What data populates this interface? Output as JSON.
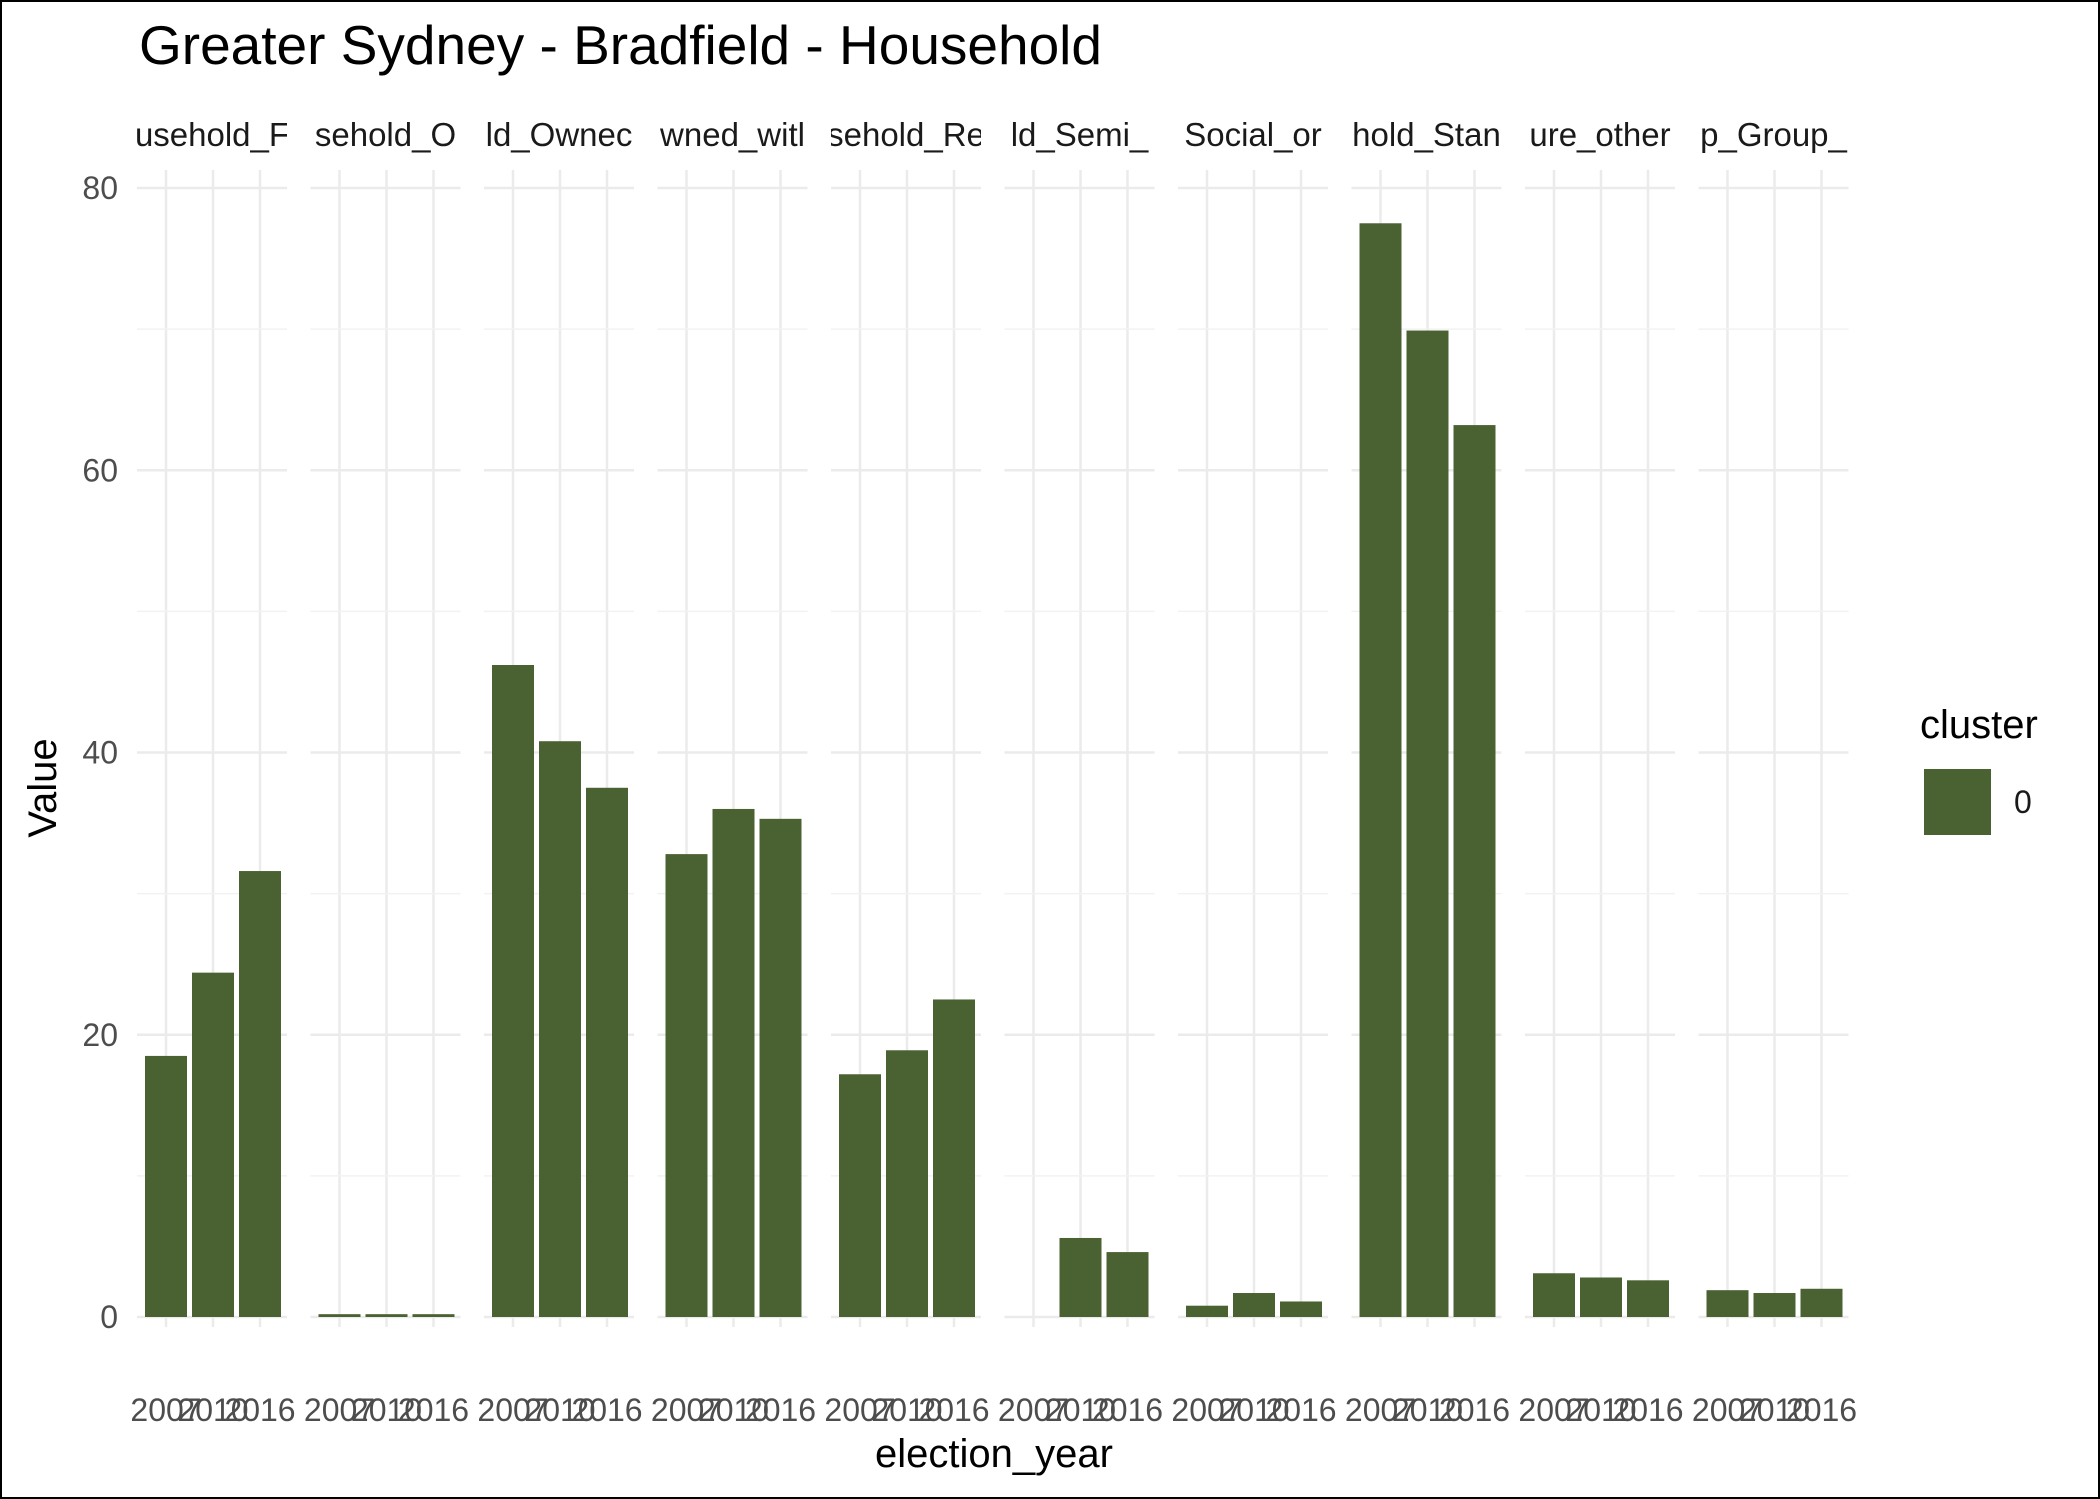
{
  "chart_data": {
    "type": "bar",
    "title": "Greater Sydney - Bradfield - Household",
    "xlabel": "election_year",
    "ylabel": "Value",
    "ylim": [
      0,
      80
    ],
    "y_ticks": [
      0,
      20,
      40,
      60,
      80
    ],
    "x_tick_labels": [
      "2007",
      "2010",
      "2016"
    ],
    "grid": true,
    "facets": [
      {
        "strip_label": "usehold_F",
        "values": [
          18.5,
          24.4,
          31.6
        ]
      },
      {
        "strip_label": "sehold_O",
        "values": [
          0.2,
          0.2,
          0.2
        ]
      },
      {
        "strip_label": "ld_Ownec",
        "values": [
          46.2,
          40.8,
          37.5
        ]
      },
      {
        "strip_label": "wned_witl",
        "values": [
          32.8,
          36.0,
          35.3
        ]
      },
      {
        "strip_label": "sehold_Re",
        "values": [
          17.2,
          18.9,
          22.5
        ]
      },
      {
        "strip_label": "ld_Semi_",
        "values": [
          0,
          5.6,
          4.6
        ]
      },
      {
        "strip_label": "Social_or",
        "values": [
          0.8,
          1.7,
          1.1
        ]
      },
      {
        "strip_label": "hold_Stan",
        "values": [
          77.5,
          69.9,
          63.2
        ]
      },
      {
        "strip_label": "ure_other",
        "values": [
          3.1,
          2.8,
          2.6
        ]
      },
      {
        "strip_label": "p_Group_",
        "values": [
          1.9,
          1.7,
          2.0
        ]
      }
    ],
    "legend": {
      "title": "cluster",
      "items": [
        {
          "label": "0",
          "color": "#4a6131"
        }
      ],
      "position": "right"
    },
    "bar_color": "#4a6131",
    "gridline_color": "#ebebeb"
  }
}
